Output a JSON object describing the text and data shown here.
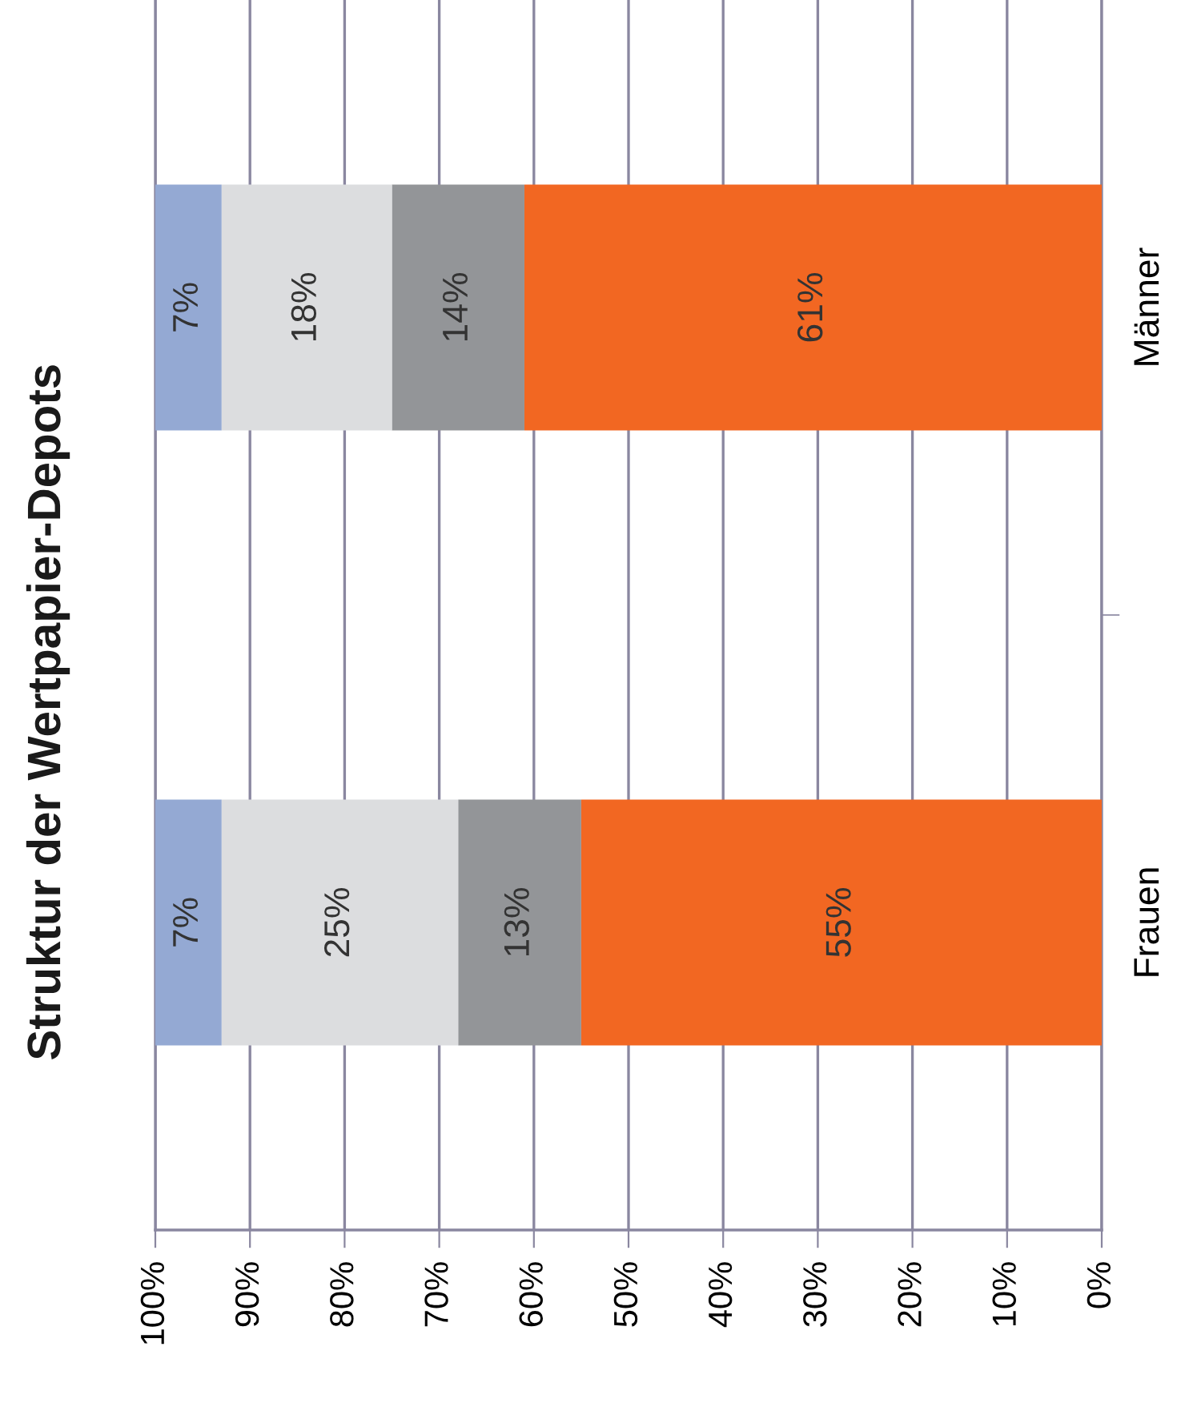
{
  "chart_data": {
    "type": "bar",
    "title": "Struktur der Wertpapier-Depots",
    "orientation": "horizontal",
    "stacked": true,
    "categories": [
      "Männer",
      "Frauen"
    ],
    "series": [
      {
        "color": "#f26722",
        "values": [
          61,
          55
        ],
        "value_labels": [
          "61%",
          "55%"
        ]
      },
      {
        "color": "#939598",
        "values": [
          14,
          13
        ],
        "value_labels": [
          "14%",
          "13%"
        ]
      },
      {
        "color": "#dcdddf",
        "values": [
          18,
          25
        ],
        "value_labels": [
          "18%",
          "25%"
        ]
      },
      {
        "color": "#94a9d3",
        "values": [
          7,
          7
        ],
        "value_labels": [
          "7%",
          "7%"
        ]
      }
    ],
    "xlim": [
      100,
      0
    ],
    "xticks": [
      {
        "value": 0,
        "label": "0%"
      },
      {
        "value": 10,
        "label": "10%"
      },
      {
        "value": 20,
        "label": "20%"
      },
      {
        "value": 30,
        "label": "30%"
      },
      {
        "value": 40,
        "label": "40%"
      },
      {
        "value": 50,
        "label": "50%"
      },
      {
        "value": 60,
        "label": "60%"
      },
      {
        "value": 70,
        "label": "70%"
      },
      {
        "value": 80,
        "label": "80%"
      },
      {
        "value": 90,
        "label": "90%"
      },
      {
        "value": 100,
        "label": "100%"
      }
    ],
    "grid": "x"
  }
}
